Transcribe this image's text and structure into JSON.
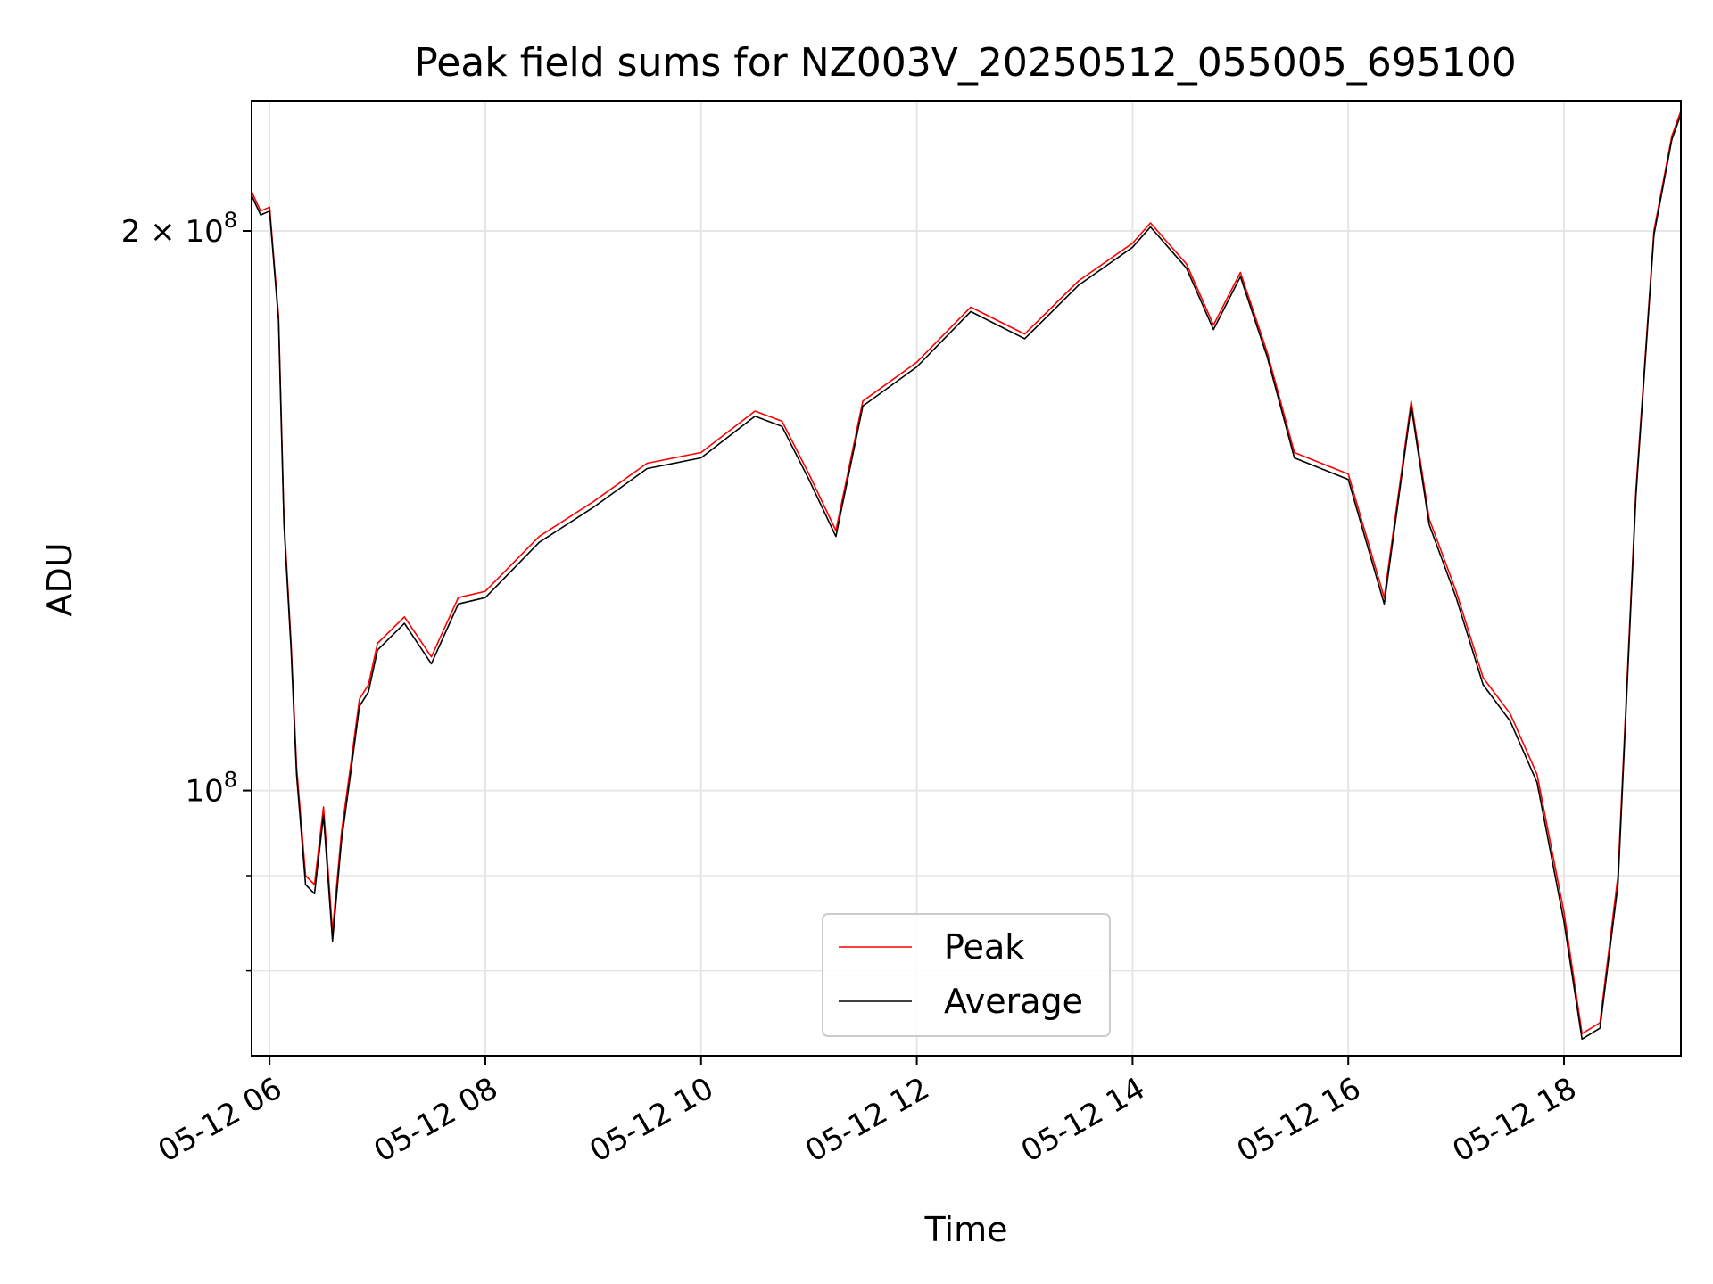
{
  "chart_data": {
    "type": "line",
    "title": "Peak field sums for NZ003V_20250512_055005_695100",
    "xlabel": "Time",
    "ylabel": "ADU",
    "y_scale": "log",
    "ylim": [
      72000000,
      235000000
    ],
    "xlim": [
      "2025-05-12 05:50",
      "2025-05-12 19:05"
    ],
    "x_ticks": [
      {
        "value": "2025-05-12 06:00",
        "label": "05-12 06"
      },
      {
        "value": "2025-05-12 08:00",
        "label": "05-12 08"
      },
      {
        "value": "2025-05-12 10:00",
        "label": "05-12 10"
      },
      {
        "value": "2025-05-12 12:00",
        "label": "05-12 12"
      },
      {
        "value": "2025-05-12 14:00",
        "label": "05-12 14"
      },
      {
        "value": "2025-05-12 16:00",
        "label": "05-12 16"
      },
      {
        "value": "2025-05-12 18:00",
        "label": "05-12 18"
      }
    ],
    "y_major_ticks": [
      {
        "value": 100000000,
        "base": "10",
        "exp": "8",
        "coef": ""
      },
      {
        "value": 200000000,
        "base": "10",
        "exp": "8",
        "coef": "2 × "
      }
    ],
    "y_minor_ticks": [
      80000000,
      90000000
    ],
    "grid": true,
    "legend": "lower-center",
    "series": [
      {
        "name": "Peak",
        "color": "#ff0000",
        "x": [
          "2025-05-12 05:50",
          "2025-05-12 05:55",
          "2025-05-12 06:00",
          "2025-05-12 06:05",
          "2025-05-12 06:08",
          "2025-05-12 06:12",
          "2025-05-12 06:15",
          "2025-05-12 06:20",
          "2025-05-12 06:25",
          "2025-05-12 06:30",
          "2025-05-12 06:35",
          "2025-05-12 06:40",
          "2025-05-12 06:45",
          "2025-05-12 06:50",
          "2025-05-12 06:55",
          "2025-05-12 07:00",
          "2025-05-12 07:15",
          "2025-05-12 07:30",
          "2025-05-12 07:45",
          "2025-05-12 08:00",
          "2025-05-12 08:30",
          "2025-05-12 09:00",
          "2025-05-12 09:30",
          "2025-05-12 10:00",
          "2025-05-12 10:30",
          "2025-05-12 10:45",
          "2025-05-12 11:00",
          "2025-05-12 11:15",
          "2025-05-12 11:30",
          "2025-05-12 12:00",
          "2025-05-12 12:30",
          "2025-05-12 13:00",
          "2025-05-12 13:30",
          "2025-05-12 14:00",
          "2025-05-12 14:10",
          "2025-05-12 14:30",
          "2025-05-12 14:45",
          "2025-05-12 15:00",
          "2025-05-12 15:15",
          "2025-05-12 15:30",
          "2025-05-12 16:00",
          "2025-05-12 16:20",
          "2025-05-12 16:35",
          "2025-05-12 16:45",
          "2025-05-12 17:00",
          "2025-05-12 17:15",
          "2025-05-12 17:30",
          "2025-05-12 17:45",
          "2025-05-12 18:00",
          "2025-05-12 18:10",
          "2025-05-12 18:20",
          "2025-05-12 18:30",
          "2025-05-12 18:40",
          "2025-05-12 18:50",
          "2025-05-12 19:00",
          "2025-05-12 19:05"
        ],
        "values": [
          210000000,
          205000000,
          206000000,
          180000000,
          140000000,
          120000000,
          103000000,
          90000000,
          89000000,
          98000000,
          84000000,
          95000000,
          103000000,
          112000000,
          114000000,
          120000000,
          124000000,
          118000000,
          127000000,
          128000000,
          137000000,
          143000000,
          150000000,
          152000000,
          160000000,
          158000000,
          148000000,
          138000000,
          162000000,
          170000000,
          182000000,
          176000000,
          188000000,
          197000000,
          202000000,
          192000000,
          178000000,
          190000000,
          172000000,
          152000000,
          148000000,
          127000000,
          162000000,
          140000000,
          128000000,
          115000000,
          110000000,
          102000000,
          86000000,
          74000000,
          75000000,
          90000000,
          145000000,
          200000000,
          225000000,
          232000000
        ]
      },
      {
        "name": "Average",
        "color": "#000000",
        "x": [
          "2025-05-12 05:50",
          "2025-05-12 05:55",
          "2025-05-12 06:00",
          "2025-05-12 06:05",
          "2025-05-12 06:08",
          "2025-05-12 06:12",
          "2025-05-12 06:15",
          "2025-05-12 06:20",
          "2025-05-12 06:25",
          "2025-05-12 06:30",
          "2025-05-12 06:35",
          "2025-05-12 06:40",
          "2025-05-12 06:45",
          "2025-05-12 06:50",
          "2025-05-12 06:55",
          "2025-05-12 07:00",
          "2025-05-12 07:15",
          "2025-05-12 07:30",
          "2025-05-12 07:45",
          "2025-05-12 08:00",
          "2025-05-12 08:30",
          "2025-05-12 09:00",
          "2025-05-12 09:30",
          "2025-05-12 10:00",
          "2025-05-12 10:30",
          "2025-05-12 10:45",
          "2025-05-12 11:00",
          "2025-05-12 11:15",
          "2025-05-12 11:30",
          "2025-05-12 12:00",
          "2025-05-12 12:30",
          "2025-05-12 13:00",
          "2025-05-12 13:30",
          "2025-05-12 14:00",
          "2025-05-12 14:10",
          "2025-05-12 14:30",
          "2025-05-12 14:45",
          "2025-05-12 15:00",
          "2025-05-12 15:15",
          "2025-05-12 15:30",
          "2025-05-12 16:00",
          "2025-05-12 16:20",
          "2025-05-12 16:35",
          "2025-05-12 16:45",
          "2025-05-12 17:00",
          "2025-05-12 17:15",
          "2025-05-12 17:30",
          "2025-05-12 17:45",
          "2025-05-12 18:00",
          "2025-05-12 18:10",
          "2025-05-12 18:20",
          "2025-05-12 18:30",
          "2025-05-12 18:40",
          "2025-05-12 18:50",
          "2025-05-12 19:00",
          "2025-05-12 19:05"
        ],
        "values": [
          209000000,
          204000000,
          205000000,
          179000000,
          139000000,
          119000000,
          102000000,
          89000000,
          88000000,
          97000000,
          83000000,
          94000000,
          102000000,
          111000000,
          113000000,
          119000000,
          123000000,
          117000000,
          126000000,
          127000000,
          136000000,
          142000000,
          149000000,
          151000000,
          159000000,
          157000000,
          147000000,
          137000000,
          161000000,
          169000000,
          181000000,
          175000000,
          187000000,
          196000000,
          201000000,
          191000000,
          177000000,
          189000000,
          171000000,
          151000000,
          147000000,
          126000000,
          161000000,
          139000000,
          127000000,
          114000000,
          109000000,
          101000000,
          85000000,
          73500000,
          74500000,
          89000000,
          144000000,
          199000000,
          224000000,
          231000000
        ]
      }
    ]
  }
}
